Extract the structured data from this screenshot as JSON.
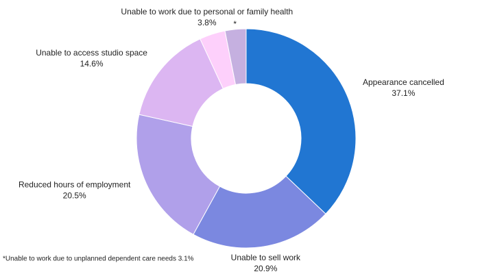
{
  "chart_data": {
    "type": "donut",
    "categories": [
      "Appearance cancelled",
      "Unable to sell work",
      "Reduced hours of employment",
      "Unable to access studio space",
      "Unable to work due to personal or family health",
      "*"
    ],
    "values": [
      37.1,
      20.9,
      20.5,
      14.6,
      3.8,
      3.1
    ],
    "value_labels": [
      "37.1%",
      "20.9%",
      "20.5%",
      "14.6%",
      "3.8%",
      null
    ],
    "colors": [
      "#2176d2",
      "#7b88e0",
      "#b0a0ea",
      "#dcb6f2",
      "#fdd0fb",
      "#c5b0e0"
    ],
    "footnote": "*Unable to work due to unplanned dependent care needs 3.1%"
  }
}
